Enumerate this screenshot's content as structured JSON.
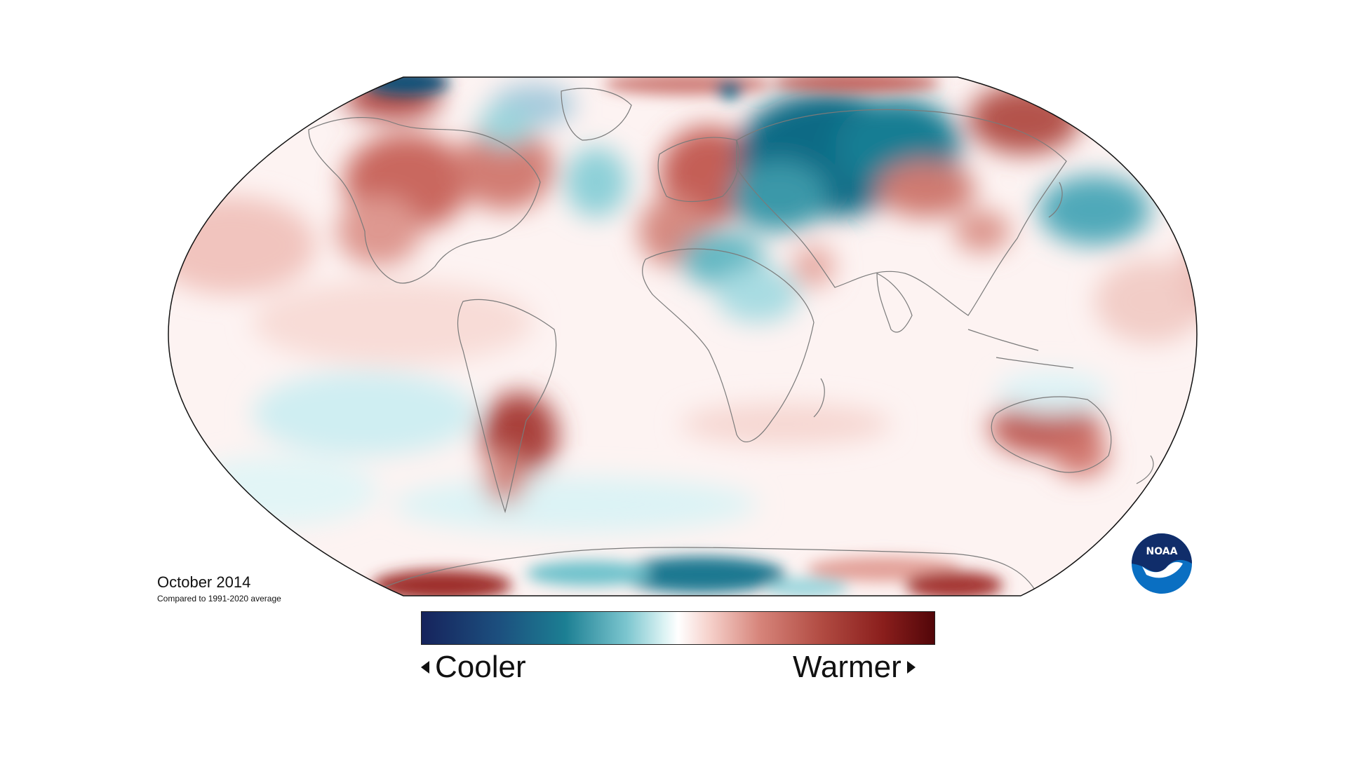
{
  "map": {
    "title": "October 2014",
    "subtitle": "Compared to 1991-2020 average",
    "legend": {
      "low_label": "Cooler",
      "high_label": "Warmer"
    },
    "logo_text": "NOAA",
    "colors": {
      "strong_cool": "#0e5f7d",
      "cool": "#6fc2cc",
      "light_cool": "#d4eef1",
      "neutral": "#ffffff",
      "light_warm": "#f5d3ce",
      "warm": "#cf7068",
      "strong_warm": "#9e3330",
      "coastline": "#777777",
      "logo_blue": "#0a6fc2",
      "logo_navy": "#102d6a"
    }
  }
}
